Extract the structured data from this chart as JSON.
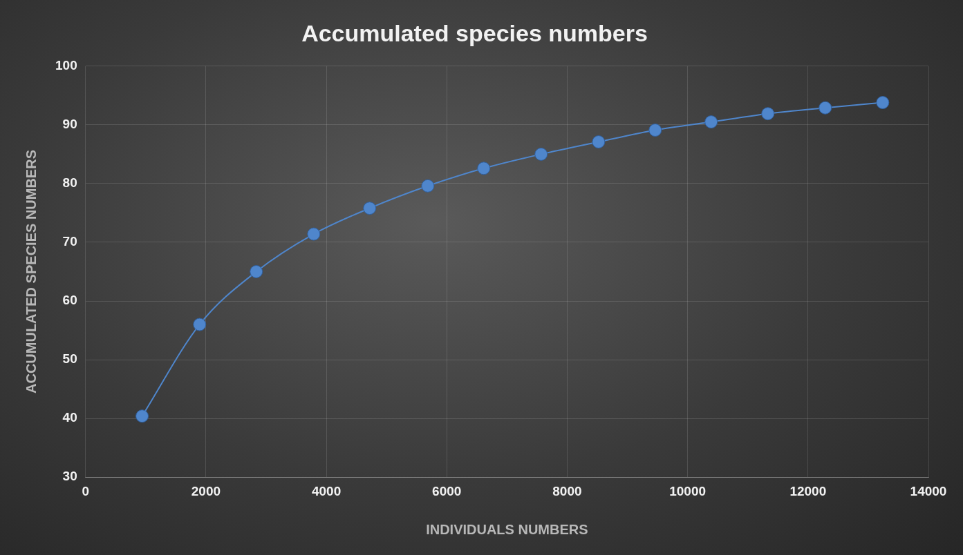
{
  "chart_data": {
    "type": "line",
    "title": "Accumulated species numbers",
    "xlabel": "INDIVIDUALS NUMBERS",
    "ylabel": "ACCUMULATED SPECIES NUMBERS",
    "x": [
      940,
      1895,
      2836,
      3790,
      4719,
      5685,
      6614,
      7567,
      8521,
      9462,
      10391,
      11333,
      12286,
      13240
    ],
    "series": [
      {
        "color": "#4f86cc",
        "values": [
          40.4,
          56.0,
          65.0,
          71.4,
          75.8,
          79.6,
          82.6,
          85.0,
          87.1,
          89.1,
          90.5,
          91.9,
          92.9,
          93.8
        ]
      }
    ],
    "xlim": [
      0,
      14000
    ],
    "xticks": [
      0,
      2000,
      4000,
      6000,
      8000,
      10000,
      12000,
      14000
    ],
    "ylim": [
      30,
      100
    ],
    "yticks": [
      30,
      40,
      50,
      60,
      70,
      80,
      90,
      100
    ],
    "grid": true,
    "legend": false,
    "marker": "circle",
    "line_style": "solid"
  }
}
